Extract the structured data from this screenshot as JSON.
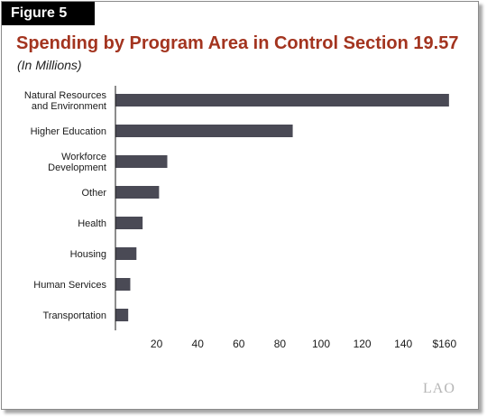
{
  "figure_label": "Figure 5",
  "chart_data": {
    "type": "bar",
    "orientation": "horizontal",
    "title": "Spending by Program Area in Control Section 19.57",
    "subtitle": "(In Millions)",
    "categories": [
      [
        "Natural Resources",
        "and Environment"
      ],
      [
        "Higher Education"
      ],
      [
        "Workforce",
        "Development"
      ],
      [
        "Other"
      ],
      [
        "Health"
      ],
      [
        "Housing"
      ],
      [
        "Human Services"
      ],
      [
        "Transportation"
      ]
    ],
    "values": [
      162,
      86,
      25,
      21,
      13,
      10,
      7,
      6
    ],
    "xlim": [
      0,
      160
    ],
    "xticks": [
      20,
      40,
      60,
      80,
      100,
      120,
      140,
      160
    ],
    "xtick_labels": [
      "20",
      "40",
      "60",
      "80",
      "100",
      "120",
      "140",
      "$160"
    ],
    "bar_color": "#4a4a55",
    "grid": false,
    "legend": "none"
  },
  "logo_text": "LAO"
}
